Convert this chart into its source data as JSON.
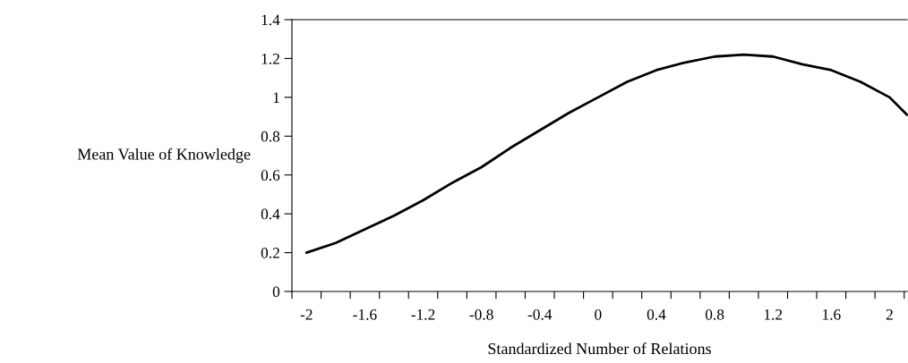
{
  "chart_data": {
    "type": "line",
    "xlabel": "Standardized Number of Relations",
    "ylabel": "Mean Value of Knowledge",
    "x": [
      -2,
      -1.8,
      -1.6,
      -1.4,
      -1.2,
      -1.0,
      -0.8,
      -0.6,
      -0.4,
      -0.2,
      0,
      0.2,
      0.4,
      0.6,
      0.8,
      1.0,
      1.2,
      1.4,
      1.6,
      1.8,
      2.0,
      2.12
    ],
    "series": [
      {
        "color": "#000000",
        "values": [
          0.2,
          0.25,
          0.32,
          0.39,
          0.47,
          0.56,
          0.64,
          0.74,
          0.83,
          0.92,
          1.0,
          1.08,
          1.14,
          1.18,
          1.21,
          1.22,
          1.21,
          1.17,
          1.14,
          1.08,
          1.0,
          0.91
        ]
      }
    ],
    "xlim": [
      -2.1,
      2.12
    ],
    "xticks": [
      {
        "value": -2.1,
        "label": null
      },
      -2,
      {
        "value": -1.9,
        "label": null
      },
      {
        "value": -1.7,
        "label": null
      },
      -1.6,
      {
        "value": -1.5,
        "label": null
      },
      {
        "value": -1.3,
        "label": null
      },
      -1.2,
      {
        "value": -1.1,
        "label": null
      },
      {
        "value": -0.9,
        "label": null
      },
      -0.8,
      {
        "value": -0.7,
        "label": null
      },
      {
        "value": -0.5,
        "label": null
      },
      -0.4,
      {
        "value": -0.3,
        "label": null
      },
      {
        "value": -0.1,
        "label": null
      },
      0,
      {
        "value": 0.1,
        "label": null
      },
      {
        "value": 0.3,
        "label": null
      },
      0.4,
      {
        "value": 0.5,
        "label": null
      },
      {
        "value": 0.7,
        "label": null
      },
      0.8,
      {
        "value": 0.9,
        "label": null
      },
      {
        "value": 1.1,
        "label": null
      },
      1.2,
      {
        "value": 1.3,
        "label": null
      },
      {
        "value": 1.5,
        "label": null
      },
      1.6,
      {
        "value": 1.7,
        "label": null
      },
      {
        "value": 1.9,
        "label": null
      },
      2,
      {
        "value": 2.1,
        "label": null
      }
    ],
    "ylim": [
      0,
      1.4
    ],
    "yticks": [
      0,
      0.2,
      0.4,
      0.6,
      0.8,
      1,
      1.2,
      1.4
    ],
    "grid": false,
    "legend": false,
    "marker": "none",
    "line_style": "solid"
  }
}
